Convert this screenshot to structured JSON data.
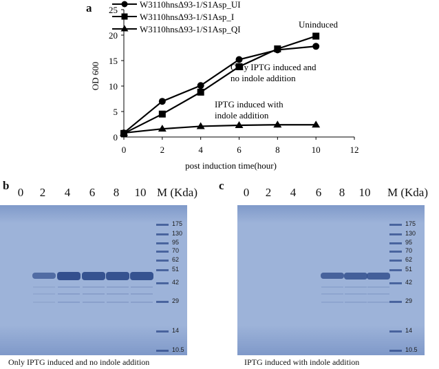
{
  "colors": {
    "gel_bg": "#9db3d9",
    "gel_dark": "#7f99c9",
    "band": "#2d4a8a",
    "line": "#000000"
  },
  "panel_a": {
    "letter": "a"
  },
  "chart_data": {
    "type": "line",
    "x": [
      0,
      2,
      4,
      6,
      8,
      10
    ],
    "xlabel": "post induction time(hour)",
    "ylabel": "OD 600",
    "xlim": [
      0,
      12
    ],
    "ylim": [
      0,
      25
    ],
    "xticks": [
      0,
      2,
      4,
      6,
      8,
      10,
      12
    ],
    "yticks": [
      0,
      5,
      10,
      15,
      20,
      25
    ],
    "grid": false,
    "legend_position": "top-left",
    "series": [
      {
        "name": "W3110hnsΔ93-1/S1Asp_UI",
        "marker": "circle",
        "values": [
          0.8,
          7.0,
          10.1,
          15.2,
          17.1,
          17.8
        ]
      },
      {
        "name": "W3110hnsΔ93-1/S1Asp_I",
        "marker": "square",
        "values": [
          0.7,
          4.5,
          8.8,
          13.8,
          17.3,
          19.8
        ]
      },
      {
        "name": "W3110hnsΔ93-1/S1Asp_QI",
        "marker": "triangle",
        "values": [
          0.8,
          1.6,
          2.1,
          2.3,
          2.4,
          2.4
        ]
      }
    ],
    "annotations": [
      {
        "lines": [
          "Uninduced"
        ]
      },
      {
        "lines": [
          "Only IPTG induced and",
          "no indole addition"
        ]
      },
      {
        "lines": [
          "IPTG induced with",
          "indole addition"
        ]
      }
    ]
  },
  "gel_b": {
    "letter": "b",
    "lanes": [
      "0",
      "2",
      "4",
      "6",
      "8",
      "10"
    ],
    "marker_header": "M (Kda)",
    "markers": [
      "175",
      "130",
      "95",
      "70",
      "62",
      "51",
      "42",
      "29",
      "14",
      "10.5"
    ],
    "caption": "Only IPTG induced and no indole addition",
    "band_intensity": [
      0,
      0.55,
      1.0,
      0.95,
      0.95,
      0.95
    ]
  },
  "gel_c": {
    "letter": "c",
    "lanes": [
      "0",
      "2",
      "4",
      "6",
      "8",
      "10"
    ],
    "marker_header": "M (Kda)",
    "markers": [
      "175",
      "130",
      "95",
      "70",
      "62",
      "51",
      "42",
      "29",
      "14",
      "10.5"
    ],
    "caption": "IPTG induced with indole addition",
    "band_intensity": [
      0,
      0,
      0,
      0.7,
      0.75,
      0.75
    ]
  }
}
